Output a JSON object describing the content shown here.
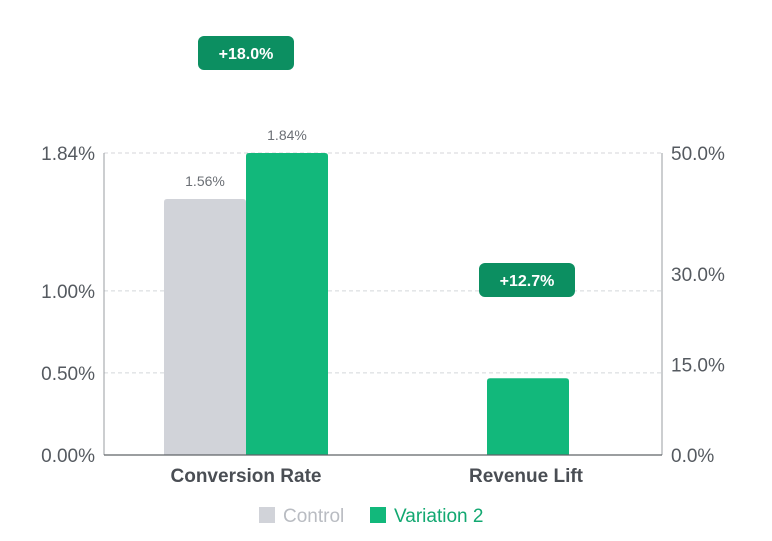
{
  "chart_data": {
    "type": "bar",
    "categories": [
      "Conversion Rate",
      "Revenue Lift"
    ],
    "series": [
      {
        "name": "Control",
        "color": "#d1d3d9",
        "points": [
          {
            "category": "Conversion Rate",
            "value": 1.56,
            "label": "1.56%",
            "axis": "left"
          }
        ]
      },
      {
        "name": "Variation 2",
        "color": "#12b87b",
        "points": [
          {
            "category": "Conversion Rate",
            "value": 1.84,
            "label": "1.84%",
            "axis": "left"
          },
          {
            "category": "Revenue Lift",
            "value": 12.7,
            "label": "",
            "axis": "right"
          }
        ]
      }
    ],
    "axes": {
      "left": {
        "ticks": [
          0,
          0.5,
          1.0,
          1.84
        ],
        "tick_labels": [
          "0.00%",
          "0.50%",
          "1.00%",
          "1.84%"
        ]
      },
      "right": {
        "ticks": [
          0,
          15,
          30,
          50
        ],
        "tick_labels": [
          "0.0%",
          "15.0%",
          "30.0%",
          "50.0%"
        ]
      }
    },
    "badges": [
      {
        "category": "Conversion Rate",
        "text": "+18.0%"
      },
      {
        "category": "Revenue Lift",
        "text": "+12.7%"
      }
    ],
    "grid": true,
    "legend_position": "bottom",
    "badge_color": "#0c8f61",
    "title": "",
    "xlabel": "",
    "ylabel": ""
  }
}
